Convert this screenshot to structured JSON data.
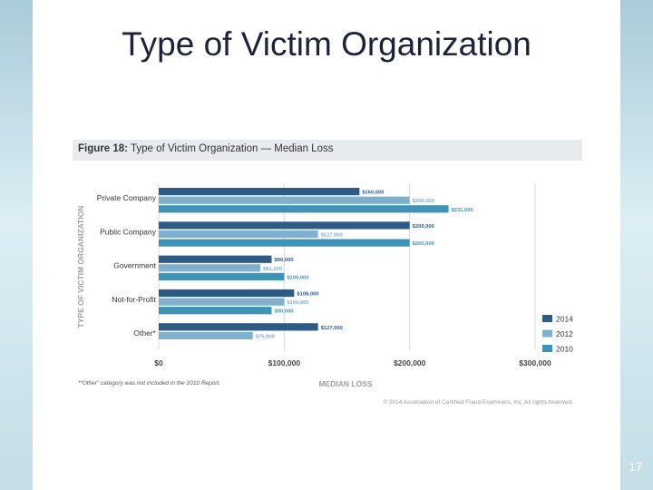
{
  "slide": {
    "title": "Type of Victim Organization",
    "page_number": "17"
  },
  "figure": {
    "label": "Figure 18:",
    "title": "Type of Victim Organization — Median Loss",
    "footnote": "*“Other” category was not included in the 2010 Report.",
    "copyright": "© 2014 Association of Certified Fraud Examiners, Inc. All rights reserved."
  },
  "chart_data": {
    "type": "bar",
    "orientation": "horizontal",
    "title": "Type of Victim Organization — Median Loss",
    "xlabel": "MEDIAN LOSS",
    "ylabel": "TYPE OF VICTIM ORGANIZATION",
    "xlim": [
      0,
      300000
    ],
    "x_ticks": [
      "$0",
      "$100,000",
      "$200,000",
      "$300,000"
    ],
    "grid": true,
    "legend_position": "right",
    "categories": [
      "Private Company",
      "Public Company",
      "Government",
      "Not-for-Profit",
      "Other*"
    ],
    "series": [
      {
        "name": "2014",
        "color": "#2d5b85",
        "values": [
          160000,
          200000,
          90000,
          108000,
          127000
        ],
        "labels": [
          "$160,000",
          "$200,000",
          "$90,000",
          "$108,000",
          "$127,000"
        ]
      },
      {
        "name": "2012",
        "color": "#7fb0cd",
        "values": [
          200000,
          127000,
          81000,
          100000,
          75000
        ],
        "labels": [
          "$200,000",
          "$127,000",
          "$81,000",
          "$100,000",
          "$75,000"
        ]
      },
      {
        "name": "2010",
        "color": "#3f93b6",
        "values": [
          231000,
          200000,
          100000,
          90000,
          null
        ],
        "labels": [
          "$231,000",
          "$200,000",
          "$100,000",
          "$90,000",
          ""
        ]
      }
    ]
  }
}
